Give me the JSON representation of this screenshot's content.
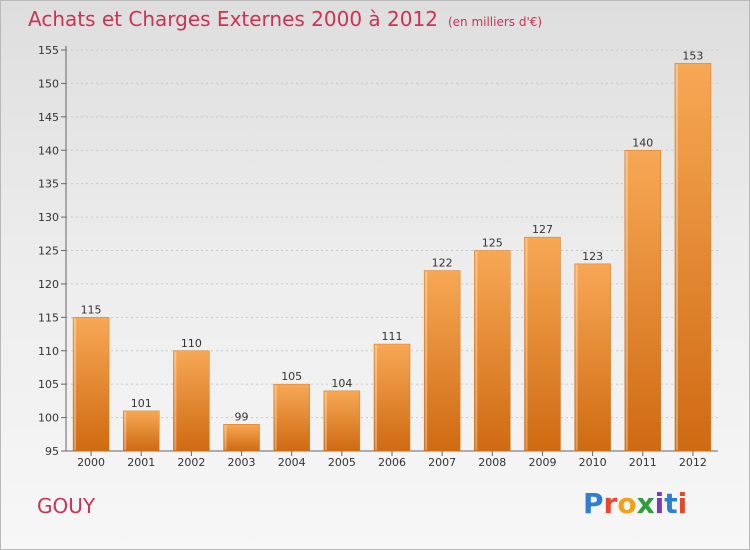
{
  "header": {
    "title": "Achats et Charges Externes 2000 à 2012",
    "unit": "(en milliers d'€)"
  },
  "footer": {
    "place": "GOUY",
    "brand": "Proxiti"
  },
  "colors": {
    "title": "#cc3355",
    "bar_light": "#f7a855",
    "bar_dark": "#cf6a12"
  },
  "chart_data": {
    "type": "bar",
    "title": "Achats et Charges Externes 2000 à 2012",
    "subtitle": "(en milliers d'€)",
    "xlabel": "",
    "ylabel": "",
    "categories": [
      "2000",
      "2001",
      "2002",
      "2003",
      "2004",
      "2005",
      "2006",
      "2007",
      "2008",
      "2009",
      "2010",
      "2011",
      "2012"
    ],
    "values": [
      115,
      101,
      110,
      99,
      105,
      104,
      111,
      122,
      125,
      127,
      123,
      140,
      153
    ],
    "ylim": [
      95,
      155
    ],
    "yticks": [
      95,
      100,
      105,
      110,
      115,
      120,
      125,
      130,
      135,
      140,
      145,
      150,
      155
    ],
    "grid": true
  }
}
